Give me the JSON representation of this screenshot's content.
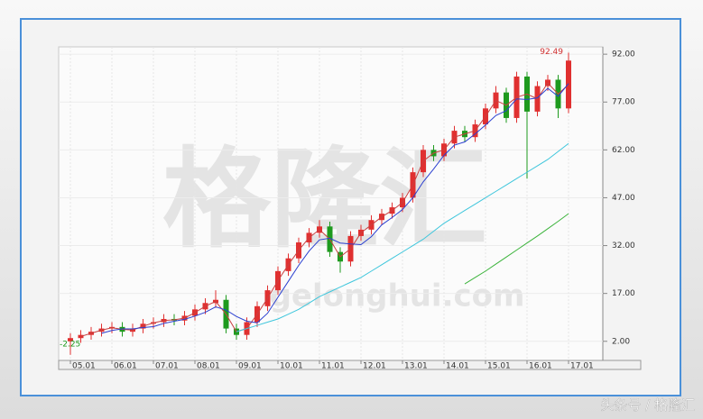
{
  "chart_data": {
    "type": "candlestick",
    "categories": [
      "05.01",
      null,
      null,
      null,
      "06.01",
      null,
      null,
      null,
      "07.01",
      null,
      null,
      null,
      "08.01",
      null,
      null,
      null,
      "09.01",
      null,
      null,
      null,
      "10.01",
      null,
      null,
      null,
      "11.01",
      null,
      null,
      null,
      "12.01",
      null,
      null,
      null,
      "13.01",
      null,
      null,
      null,
      "14.01",
      null,
      null,
      null,
      "15.01",
      null,
      null,
      null,
      "16.01",
      null,
      null,
      null,
      "17.01"
    ],
    "open": [
      2,
      3,
      4,
      5,
      6,
      6.5,
      5,
      6,
      7.5,
      8,
      9,
      8.5,
      10,
      12,
      14,
      15,
      6,
      4,
      8,
      13,
      18,
      24,
      28,
      33,
      36,
      38,
      30,
      27,
      35,
      37,
      40,
      42,
      44,
      47,
      55,
      62,
      60,
      64,
      68,
      66,
      70,
      75,
      80,
      72,
      85,
      74,
      82,
      84,
      75
    ],
    "high": [
      4.5,
      5.5,
      6.5,
      7.5,
      8,
      8,
      7.5,
      9,
      9.5,
      10.5,
      10.5,
      11.5,
      13.5,
      15.5,
      18,
      16.5,
      7.5,
      9.5,
      14.5,
      19.5,
      25.5,
      29.5,
      34.5,
      37.5,
      40,
      39.5,
      31.5,
      36.5,
      38.5,
      41.5,
      43.5,
      45.5,
      48.5,
      56.5,
      63.5,
      63.5,
      65.5,
      69.5,
      69.5,
      71.5,
      76.5,
      82,
      81.5,
      86.5,
      86.5,
      83.5,
      85.5,
      85.5,
      92.49
    ],
    "low": [
      -2.25,
      1.5,
      2.5,
      3.5,
      4.5,
      3.5,
      3.5,
      4.5,
      6,
      6.5,
      7,
      7,
      8.5,
      10.5,
      12.5,
      4.5,
      2.5,
      2.5,
      6.5,
      11.5,
      16.5,
      22.5,
      26.5,
      31.5,
      34.5,
      28.5,
      23.5,
      25.5,
      33.5,
      35.5,
      38.5,
      40.5,
      42.5,
      45.5,
      53.5,
      58.5,
      58.5,
      62.5,
      64.5,
      64.5,
      68.5,
      73.5,
      70.5,
      70.5,
      53,
      72.5,
      80.5,
      72,
      73.5
    ],
    "close": [
      3,
      4,
      5,
      6,
      6.5,
      5,
      6,
      7.5,
      8,
      9,
      8.5,
      10,
      12,
      14,
      15,
      6,
      4,
      8,
      13,
      18,
      24,
      28,
      33,
      36,
      38,
      30,
      27,
      35,
      37,
      40,
      42,
      44,
      47,
      55,
      62,
      60,
      64,
      68,
      66,
      70,
      75,
      80,
      72,
      85,
      74,
      82,
      84,
      75,
      90
    ],
    "up_color": "#e03030",
    "down_color": "#1e9a1e",
    "lines": [
      {
        "color": "#c84040",
        "values": [
          null,
          3.5,
          4.5,
          5.5,
          6.25,
          5.75,
          5.5,
          6.75,
          7.75,
          8.5,
          8.75,
          9.25,
          11,
          13,
          14.5,
          10.5,
          5,
          6,
          10.5,
          15.5,
          21,
          26,
          30.5,
          34.5,
          37,
          34,
          28.5,
          31,
          36,
          38.5,
          41,
          43,
          45.5,
          51,
          58.5,
          61,
          62,
          66,
          67,
          68,
          72.5,
          77.5,
          76,
          78.5,
          79.5,
          78,
          83,
          79.5,
          82.5
        ]
      },
      {
        "color": "#2a3fd0",
        "values": [
          null,
          null,
          null,
          4.5,
          5.4,
          5.9,
          5.9,
          6.3,
          6.6,
          7.6,
          8.3,
          8.9,
          9.9,
          11.1,
          12.8,
          11.8,
          9.8,
          8.3,
          7.8,
          10.8,
          15.8,
          20.8,
          25.8,
          30.3,
          33.8,
          34.3,
          32.8,
          32.5,
          32.3,
          34.8,
          38.5,
          40.8,
          43.3,
          47,
          52,
          56,
          60.3,
          63.5,
          64.5,
          67,
          69.8,
          72.8,
          74.3,
          78,
          77.8,
          78.3,
          81.3,
          78.8,
          82.8
        ]
      },
      {
        "color": "#3ec6dc",
        "values": [
          null,
          null,
          null,
          null,
          null,
          null,
          null,
          null,
          null,
          null,
          null,
          null,
          null,
          null,
          null,
          null,
          5,
          6,
          7,
          8,
          9,
          10.5,
          12,
          14,
          16,
          17.5,
          19,
          20.5,
          22,
          24,
          26,
          28,
          30,
          32,
          34,
          36.5,
          39,
          41,
          43,
          45,
          47,
          49,
          51,
          53,
          55,
          57,
          59,
          61.5,
          64
        ]
      },
      {
        "color": "#3cb43c",
        "values": [
          null,
          null,
          null,
          null,
          null,
          null,
          null,
          null,
          null,
          null,
          null,
          null,
          null,
          null,
          null,
          null,
          null,
          null,
          null,
          null,
          null,
          null,
          null,
          null,
          null,
          null,
          null,
          null,
          null,
          null,
          null,
          null,
          null,
          null,
          null,
          null,
          null,
          null,
          20,
          22,
          24,
          26.2,
          28.4,
          30.6,
          32.8,
          35,
          37.3,
          39.6,
          42
        ]
      }
    ],
    "ylim": [
      -4,
      94.3
    ],
    "yticks": [
      {
        "value": 2,
        "label": "2.00"
      },
      {
        "value": 17,
        "label": "17.00"
      },
      {
        "value": 32,
        "label": "32.00"
      },
      {
        "value": 47,
        "label": "47.00"
      },
      {
        "value": 62,
        "label": "62.00"
      },
      {
        "value": 77,
        "label": "77.00"
      },
      {
        "value": 92,
        "label": "92.00"
      }
    ],
    "grid": true,
    "max_label": "92.49",
    "min_label": "-2.25",
    "watermark": "格隆汇",
    "watermark_url": "gelonghui.com",
    "footer": "头条号 / 格隆汇"
  }
}
